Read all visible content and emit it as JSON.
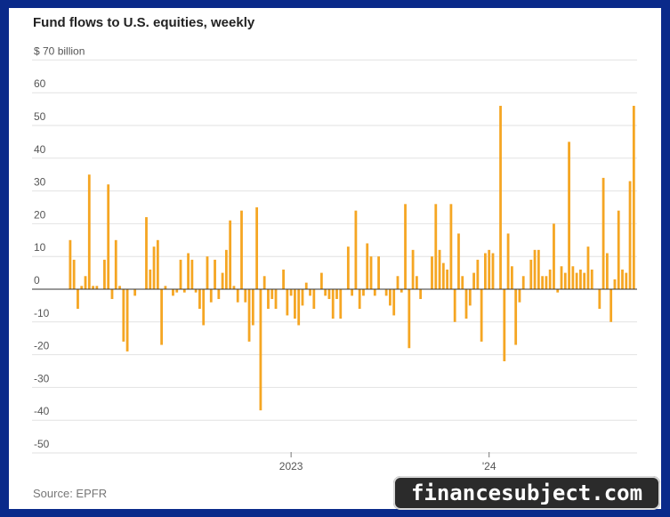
{
  "title": "Fund flows to U.S. equities, weekly",
  "source": "Source: EPFR",
  "watermark": "financesubject.com",
  "colors": {
    "bar": "#f5a623",
    "background": "#ffffff",
    "border": "#0a2a8a"
  },
  "chart_data": {
    "type": "bar",
    "title": "Fund flows to U.S. equities, weekly",
    "ylabel": "",
    "y_unit_label": "$ 70 billion",
    "ylim": [
      -50,
      70
    ],
    "yticks": [
      70,
      60,
      50,
      40,
      30,
      20,
      10,
      0,
      -10,
      -20,
      -30,
      -40,
      -50
    ],
    "ytick_labels": [
      "$ 70 billion",
      "60",
      "50",
      "40",
      "30",
      "20",
      "10",
      "0",
      "-10",
      "-20",
      "-30",
      "-40",
      "-50"
    ],
    "x_tick_labels": [
      {
        "label": "2023",
        "week_index": 58
      },
      {
        "label": "'24",
        "week_index": 110
      }
    ],
    "grid": true,
    "values": [
      15,
      9,
      -6,
      1,
      4,
      35,
      1,
      1,
      0,
      9,
      32,
      -3,
      15,
      1,
      -16,
      -19,
      0,
      -2,
      0,
      0,
      22,
      6,
      13,
      15,
      -17,
      1,
      0,
      -2,
      -1,
      9,
      -1,
      11,
      9,
      -1,
      -6,
      -11,
      10,
      -4,
      9,
      -3,
      5,
      12,
      21,
      1,
      -4,
      24,
      -4,
      -16,
      -11,
      25,
      -37,
      4,
      -6,
      -3,
      -6,
      0,
      6,
      -8,
      -2,
      -9,
      -11,
      -5,
      2,
      -2,
      -6,
      0,
      5,
      -2,
      -3,
      -9,
      -3,
      -9,
      0,
      13,
      -2,
      24,
      -6,
      -2,
      14,
      10,
      -2,
      10,
      0,
      -2,
      -5,
      -8,
      4,
      -1,
      26,
      -18,
      12,
      4,
      -3,
      0,
      0,
      10,
      26,
      12,
      8,
      6,
      26,
      -10,
      17,
      4,
      -9,
      -5,
      5,
      9,
      -16,
      11,
      12,
      11,
      0,
      56,
      -22,
      17,
      7,
      -17,
      -4,
      4,
      0,
      9,
      12,
      12,
      4,
      4,
      6,
      20,
      -1,
      7,
      5,
      45,
      7,
      5,
      6,
      5,
      13,
      6,
      0,
      -6,
      34,
      11,
      -10,
      3,
      24,
      6,
      5,
      33,
      56
    ]
  }
}
